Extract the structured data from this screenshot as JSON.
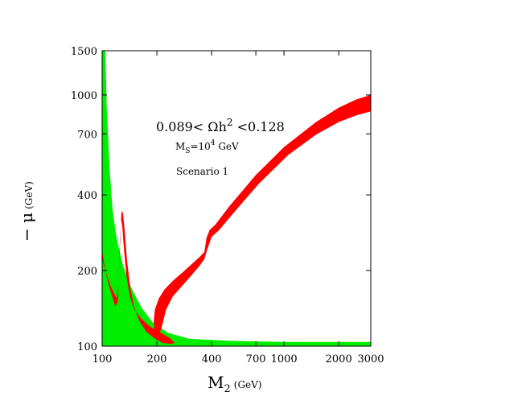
{
  "chart_data": {
    "type": "area",
    "xlabel": {
      "main": "M",
      "sub": "2",
      "unit": "(GeV)"
    },
    "ylabel": {
      "main": "− μ",
      "unit": "(GeV)"
    },
    "x_scale": "log",
    "y_scale": "log",
    "xlim": [
      100,
      3000
    ],
    "ylim": [
      100,
      1500
    ],
    "x_ticks": [
      {
        "value": 100,
        "label": "100"
      },
      {
        "value": 200,
        "label": "200"
      },
      {
        "value": 400,
        "label": "400"
      },
      {
        "value": 700,
        "label": "700"
      },
      {
        "value": 1000,
        "label": "1000"
      },
      {
        "value": 2000,
        "label": "2000"
      },
      {
        "value": 3000,
        "label": "3000"
      }
    ],
    "y_ticks": [
      {
        "value": 100,
        "label": "100"
      },
      {
        "value": 200,
        "label": "200"
      },
      {
        "value": 400,
        "label": "400"
      },
      {
        "value": 700,
        "label": "700"
      },
      {
        "value": 1000,
        "label": "1000"
      },
      {
        "value": 1500,
        "label": "1500"
      }
    ],
    "annotations": {
      "relic": {
        "prefix": "0.089< Ωh",
        "sup": "2",
        "suffix": " <0.128"
      },
      "ms": {
        "prefix": "M",
        "sub": "S",
        "mid": "=10",
        "sup": "4",
        "suffix": " GeV"
      },
      "scenario": "Scenario 1"
    },
    "colors": {
      "green_region": "#00ee00",
      "red_band": "#ff0000",
      "axes": "#000000"
    },
    "series": [
      {
        "region": "green",
        "polygon": [
          [
            100,
            1500
          ],
          [
            104,
            1500
          ],
          [
            106,
            900
          ],
          [
            110,
            500
          ],
          [
            114,
            350
          ],
          [
            120,
            270
          ],
          [
            130,
            210
          ],
          [
            145,
            170
          ],
          [
            165,
            142
          ],
          [
            190,
            124
          ],
          [
            230,
            113
          ],
          [
            300,
            107
          ],
          [
            500,
            105
          ],
          [
            1000,
            104
          ],
          [
            3000,
            104
          ],
          [
            3000,
            100
          ],
          [
            100,
            100
          ]
        ]
      },
      {
        "region": "red",
        "polygon": [
          [
            3000,
            1000
          ],
          [
            2500,
            960
          ],
          [
            2000,
            890
          ],
          [
            1500,
            780
          ],
          [
            1000,
            620
          ],
          [
            700,
            480
          ],
          [
            500,
            360
          ],
          [
            420,
            305
          ],
          [
            390,
            290
          ],
          [
            375,
            270
          ],
          [
            365,
            237
          ],
          [
            340,
            225
          ],
          [
            280,
            198
          ],
          [
            245,
            182
          ],
          [
            220,
            168
          ],
          [
            205,
            155
          ],
          [
            195,
            140
          ],
          [
            192,
            125
          ],
          [
            195,
            110
          ],
          [
            200,
            106
          ],
          [
            212,
            118
          ],
          [
            225,
            140
          ],
          [
            245,
            158
          ],
          [
            280,
            176
          ],
          [
            340,
            207
          ],
          [
            365,
            222
          ],
          [
            380,
            245
          ],
          [
            400,
            272
          ],
          [
            440,
            290
          ],
          [
            520,
            335
          ],
          [
            720,
            440
          ],
          [
            1050,
            575
          ],
          [
            1500,
            695
          ],
          [
            2000,
            780
          ],
          [
            2500,
            830
          ],
          [
            3000,
            860
          ]
        ]
      },
      {
        "region": "red",
        "polygon": [
          [
            100,
            240
          ],
          [
            104,
            200
          ],
          [
            112,
            172
          ],
          [
            120,
            155
          ],
          [
            123,
            175
          ],
          [
            125,
            260
          ],
          [
            128,
            345
          ],
          [
            130,
            340
          ],
          [
            133,
            290
          ],
          [
            137,
            220
          ],
          [
            143,
            170
          ],
          [
            150,
            143
          ],
          [
            160,
            126
          ],
          [
            175,
            114
          ],
          [
            195,
            107
          ],
          [
            215,
            103
          ],
          [
            240,
            102
          ],
          [
            250,
            103
          ],
          [
            235,
            108
          ],
          [
            210,
            113
          ],
          [
            185,
            119
          ],
          [
            165,
            128
          ],
          [
            150,
            140
          ],
          [
            142,
            158
          ],
          [
            136,
            190
          ],
          [
            132,
            240
          ],
          [
            129,
            300
          ],
          [
            127,
            320
          ],
          [
            125,
            240
          ],
          [
            122,
            150
          ],
          [
            118,
            144
          ],
          [
            110,
            170
          ],
          [
            102,
            210
          ],
          [
            100,
            225
          ]
        ]
      }
    ]
  }
}
